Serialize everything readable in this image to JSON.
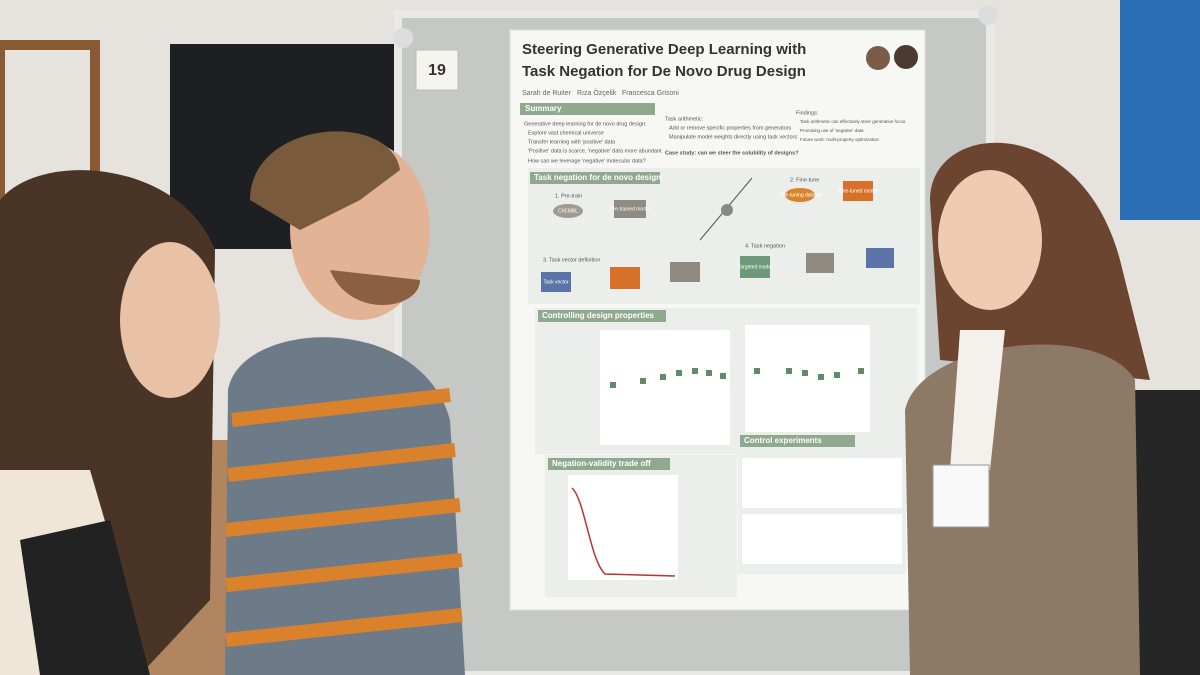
{
  "board_number": "19",
  "poster": {
    "title_lines": [
      "Steering Generative Deep Learning with",
      "Task Negation for De Novo Drug Design"
    ],
    "authors": [
      "Sarah de Ruiter",
      "Rıza Özçelik",
      "Francesca Grisoni"
    ],
    "summary": {
      "heading": "Summary",
      "items": [
        "Generative deep learning for de novo drug design:",
        "Explore vast chemical universe",
        "Transfer learning with 'positive' data",
        "'Positive' data is scarce, 'negative' data more abundant",
        "How can we leverage 'negative' molecular data?"
      ]
    },
    "task_arithmetic": {
      "heading": "Task arithmetic:",
      "items": [
        "Add or remove specific properties from generators",
        "Manipulate model weights directly using task vectors"
      ],
      "case_study": "Case study: can we steer the solubility of designs?"
    },
    "findings": {
      "heading": "Findings:",
      "items": [
        "Task arithmetic can effectively steer generative focus",
        "Promising use of 'negative' data",
        "Future work: multi-property optimization"
      ]
    },
    "sections": [
      "Task negation for de novo design",
      "Controlling design properties",
      "Negation-validity trade off",
      "Control experiments"
    ],
    "steps": [
      "1. Pre-train",
      "2. Fine-tune",
      "3. Task vector definition",
      "4. Task negation"
    ],
    "nodes": [
      "ChEMBL",
      "Pre-trained model",
      "Fine-tuning dataset",
      "Fine-tuned model",
      "Task vector",
      "Targeted model"
    ]
  }
}
